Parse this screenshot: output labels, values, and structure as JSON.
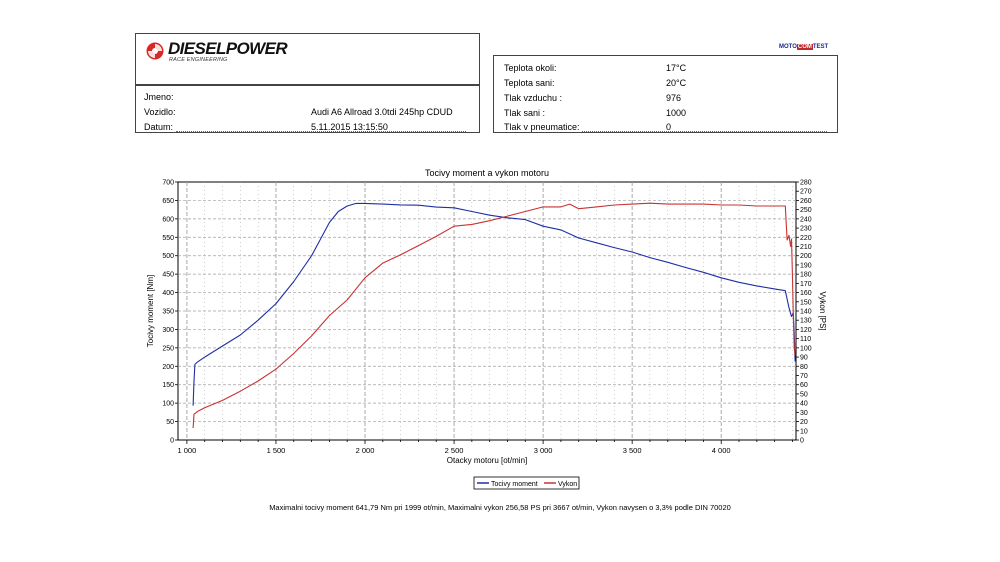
{
  "header": {
    "brand": "DIESELPOWER",
    "brand_sub": "RACE ENGINEERING",
    "badge": {
      "part1": "MOTO",
      "part2": "COM",
      "part3": "TEST"
    }
  },
  "vehicle_info": [
    {
      "label": "Jmeno:",
      "value": ""
    },
    {
      "label": "Vozidlo:",
      "value": "Audi A6 Allroad 3.0tdi 245hp CDUD"
    },
    {
      "label": "Datum:",
      "value": "5.11.2015 13:15:50"
    }
  ],
  "conditions": [
    {
      "label": "Teplota okoli:",
      "value": "17°C"
    },
    {
      "label": "Teplota sani:",
      "value": "20°C"
    },
    {
      "label": "Tlak vzduchu :",
      "value": "976"
    },
    {
      "label": "Tlak sani :",
      "value": "1000"
    },
    {
      "label": "Tlak v pneumatice:",
      "value": "0"
    }
  ],
  "colors": {
    "torque": "#1f2fa6",
    "power": "#c83232",
    "grid": "#a0a0a0"
  },
  "chart_data": {
    "type": "line",
    "title": "Tocivy moment a vykon motoru",
    "xlabel": "Otacky motoru [ot/min]",
    "ylabel": "Tocivy moment [Nm]",
    "y2label": "Vykon [PS]",
    "xlim": [
      950,
      4420
    ],
    "ylim": [
      0,
      700
    ],
    "y2lim": [
      0,
      280
    ],
    "x_ticks": [
      1000,
      1500,
      2000,
      2500,
      3000,
      3500,
      4000
    ],
    "x_tick_labels": [
      "1 000",
      "1 500",
      "2 000",
      "2 500",
      "3 000",
      "3 500",
      "4 000"
    ],
    "y_ticks": [
      0,
      50,
      100,
      150,
      200,
      250,
      300,
      350,
      400,
      450,
      500,
      550,
      600,
      650,
      700
    ],
    "y2_ticks": [
      0,
      10,
      20,
      30,
      40,
      50,
      60,
      70,
      80,
      90,
      100,
      110,
      120,
      130,
      140,
      150,
      160,
      170,
      180,
      190,
      200,
      210,
      220,
      230,
      240,
      250,
      260,
      270,
      280
    ],
    "grid": true,
    "legend_position": "bottom-center",
    "series": [
      {
        "name": "Tocivy moment",
        "axis": "left",
        "x": [
          1035,
          1040,
          1045,
          1060,
          1100,
          1200,
          1300,
          1400,
          1500,
          1600,
          1700,
          1750,
          1800,
          1850,
          1900,
          1950,
          2000,
          2100,
          2200,
          2300,
          2400,
          2500,
          2600,
          2700,
          2800,
          2900,
          3000,
          3100,
          3200,
          3300,
          3400,
          3500,
          3600,
          3700,
          3800,
          3900,
          4000,
          4100,
          4200,
          4300,
          4360,
          4380,
          4395,
          4405,
          4410,
          4415
        ],
        "values": [
          93,
          160,
          205,
          212,
          225,
          255,
          285,
          325,
          370,
          430,
          500,
          545,
          590,
          620,
          635,
          642,
          642,
          640,
          638,
          637,
          632,
          630,
          620,
          610,
          603,
          598,
          580,
          570,
          548,
          535,
          522,
          510,
          495,
          482,
          468,
          455,
          440,
          428,
          418,
          410,
          405,
          360,
          335,
          345,
          290,
          213
        ]
      },
      {
        "name": "Vykon",
        "axis": "right",
        "x": [
          1035,
          1040,
          1060,
          1100,
          1200,
          1300,
          1400,
          1500,
          1600,
          1700,
          1800,
          1900,
          2000,
          2100,
          2200,
          2300,
          2400,
          2500,
          2600,
          2700,
          2800,
          2900,
          3000,
          3100,
          3150,
          3200,
          3300,
          3400,
          3500,
          3600,
          3700,
          3800,
          3900,
          4000,
          4100,
          4200,
          4300,
          4360,
          4370,
          4380,
          4390,
          4395,
          4400,
          4405,
          4410,
          4415
        ],
        "values": [
          13,
          28,
          31,
          35,
          43,
          53,
          64,
          77,
          94,
          113,
          135,
          152,
          176,
          192,
          201,
          211,
          221,
          232,
          234,
          238,
          243,
          248,
          253,
          253,
          256,
          251,
          253,
          255,
          256,
          257,
          256,
          256,
          256,
          255,
          255,
          254,
          254,
          254,
          217,
          222,
          210,
          218,
          180,
          135,
          100,
          92
        ]
      }
    ],
    "legend": [
      "Tocivy moment",
      "Vykon"
    ],
    "note": "Maximalni tocivy moment 641,79 Nm pri 1999 ot/min,  Maximalni vykon 256,58 PS pri 3667 ot/min,  Vykon navysen o 3,3% podle DIN 70020"
  }
}
